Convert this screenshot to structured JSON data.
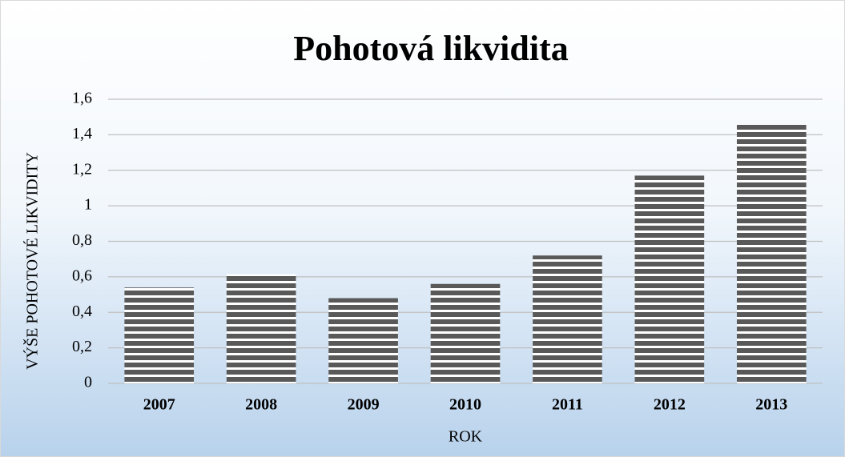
{
  "chart_data": {
    "type": "bar",
    "title": "Pohotová likvidita",
    "y_label": "VÝŠE POHOTOVÉ LIKVIDITY",
    "x_label": "ROK",
    "categories": [
      "2007",
      "2008",
      "2009",
      "2010",
      "2011",
      "2012",
      "2013"
    ],
    "values": [
      0.54,
      0.615,
      0.48,
      0.56,
      0.72,
      1.17,
      1.46
    ],
    "color": "#595959",
    "ylim": [
      0,
      1.6
    ],
    "yticks": [
      0,
      {
        "value": 0.2,
        "label": "0,2"
      },
      {
        "value": 0.4,
        "label": "0,4"
      },
      {
        "value": 0.6,
        "label": "0,6"
      },
      {
        "value": 0.8,
        "label": "0,8"
      },
      1,
      {
        "value": 1.2,
        "label": "1,2"
      },
      {
        "value": 1.4,
        "label": "1,4"
      },
      {
        "value": 1.6,
        "label": "1,6"
      }
    ],
    "grid": true
  }
}
